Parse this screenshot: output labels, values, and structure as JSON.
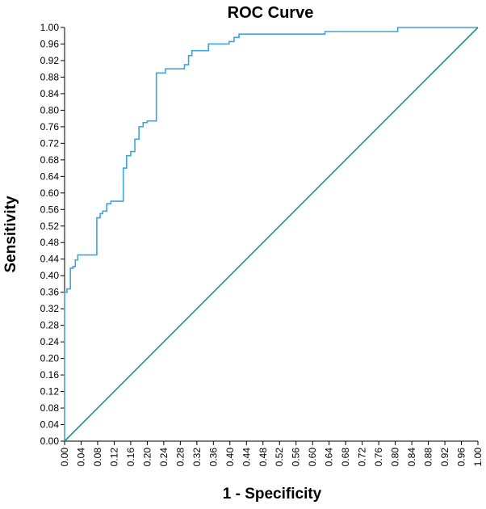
{
  "chart_data": {
    "type": "line",
    "title": "ROC Curve",
    "xlabel": "1 - Specificity",
    "ylabel": "Sensitivity",
    "xlim": [
      0,
      1
    ],
    "ylim": [
      0,
      1
    ],
    "grid": false,
    "x_ticks": [
      "0.00",
      "0.04",
      "0.08",
      "0.12",
      "0.16",
      "0.20",
      "0.24",
      "0.28",
      "0.32",
      "0.36",
      "0.40",
      "0.44",
      "0.48",
      "0.52",
      "0.56",
      "0.60",
      "0.64",
      "0.68",
      "0.72",
      "0.76",
      "0.80",
      "0.84",
      "0.88",
      "0.92",
      "0.96",
      "1.00"
    ],
    "x_tick_values": [
      0,
      0.04,
      0.08,
      0.12,
      0.16,
      0.2,
      0.24,
      0.28,
      0.32,
      0.36,
      0.4,
      0.44,
      0.48,
      0.52,
      0.56,
      0.6,
      0.64,
      0.68,
      0.72,
      0.76,
      0.8,
      0.84,
      0.88,
      0.92,
      0.96,
      1.0
    ],
    "y_ticks": [
      "0.00",
      "0.04",
      "0.08",
      "0.12",
      "0.16",
      "0.20",
      "0.24",
      "0.28",
      "0.32",
      "0.36",
      "0.40",
      "0.44",
      "0.48",
      "0.52",
      "0.56",
      "0.60",
      "0.64",
      "0.68",
      "0.72",
      "0.76",
      "0.80",
      "0.84",
      "0.88",
      "0.92",
      "0.96",
      "1.00"
    ],
    "y_tick_values": [
      0,
      0.04,
      0.08,
      0.12,
      0.16,
      0.2,
      0.24,
      0.28,
      0.32,
      0.36,
      0.4,
      0.44,
      0.48,
      0.52,
      0.56,
      0.6,
      0.64,
      0.68,
      0.72,
      0.76,
      0.8,
      0.84,
      0.88,
      0.92,
      0.96,
      1.0
    ],
    "series": [
      {
        "color": "#3fa4dc",
        "x": [
          0,
          0,
          0.006,
          0.006,
          0.014,
          0.014,
          0.02,
          0.02,
          0.026,
          0.026,
          0.032,
          0.032,
          0.078,
          0.078,
          0.086,
          0.086,
          0.092,
          0.092,
          0.102,
          0.102,
          0.112,
          0.112,
          0.142,
          0.142,
          0.15,
          0.15,
          0.16,
          0.16,
          0.17,
          0.17,
          0.18,
          0.18,
          0.19,
          0.19,
          0.2,
          0.2,
          0.222,
          0.222,
          0.244,
          0.244,
          0.29,
          0.29,
          0.3,
          0.3,
          0.308,
          0.308,
          0.348,
          0.348,
          0.398,
          0.398,
          0.41,
          0.41,
          0.422,
          0.422,
          0.63,
          0.63,
          0.806,
          0.806,
          1.0
        ],
        "y": [
          0,
          0.36,
          0.36,
          0.368,
          0.368,
          0.418,
          0.418,
          0.422,
          0.422,
          0.438,
          0.438,
          0.45,
          0.45,
          0.54,
          0.54,
          0.55,
          0.55,
          0.556,
          0.556,
          0.574,
          0.574,
          0.58,
          0.58,
          0.66,
          0.66,
          0.69,
          0.69,
          0.7,
          0.7,
          0.73,
          0.73,
          0.76,
          0.76,
          0.77,
          0.77,
          0.774,
          0.774,
          0.89,
          0.89,
          0.9,
          0.9,
          0.91,
          0.91,
          0.932,
          0.932,
          0.944,
          0.944,
          0.96,
          0.96,
          0.966,
          0.966,
          0.976,
          0.976,
          0.984,
          0.984,
          0.99,
          0.99,
          1.0,
          1.0
        ]
      },
      {
        "color": "#2e8b8b",
        "x": [
          0,
          1
        ],
        "y": [
          0,
          1
        ]
      }
    ]
  }
}
